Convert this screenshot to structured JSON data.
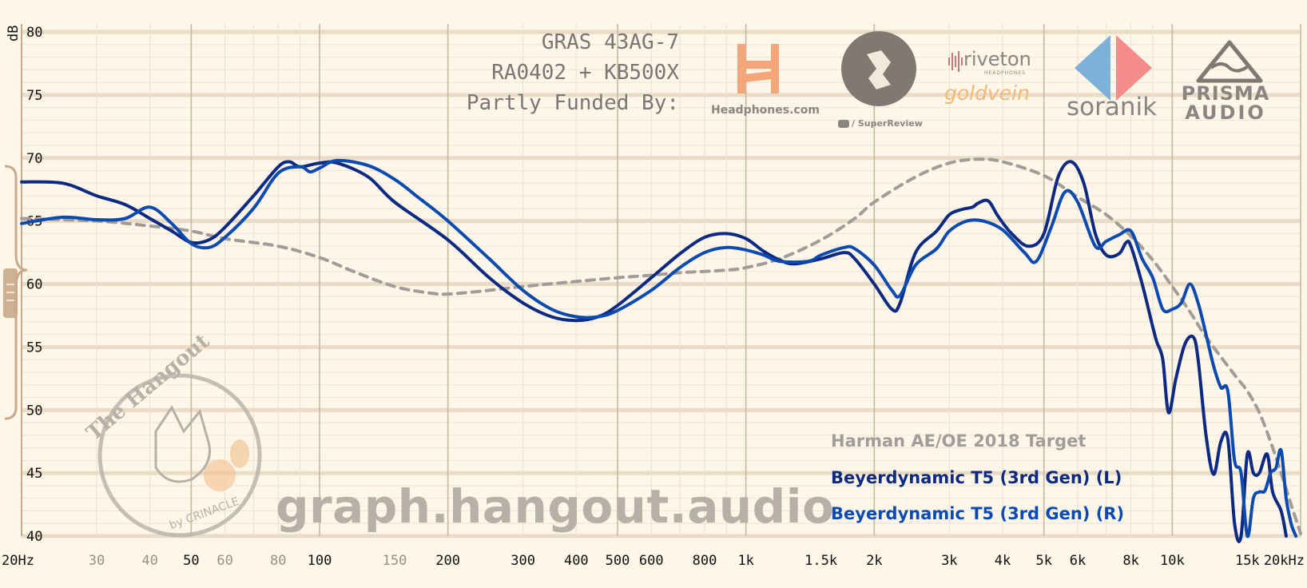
{
  "header": {
    "line1": "GRAS 43AG-7",
    "line2": "RA0402 + KB500X",
    "line3": "Partly Funded By:"
  },
  "sponsors": {
    "headphones": "Headphones.com",
    "superreview": "/ SuperReview",
    "riveton": "riveton",
    "riveton_sub": "HEADPHONES",
    "goldvein": "goldvein",
    "soranik": "soranik",
    "prisma_line1": "PRISMA",
    "prisma_line2": "AUDIO"
  },
  "watermark": "graph.hangout.audio",
  "badge": {
    "title": "The Hangout",
    "by": "by CRINACLE"
  },
  "colors": {
    "background": "#fdf6e9",
    "target": "#a19c98",
    "left": "#0d2a82",
    "right": "#0b4bb0",
    "grid_major": "#c9b79f",
    "grid_minor": "#e8dccb"
  },
  "chart_data": {
    "type": "line",
    "ylabel": "dB",
    "ylim": [
      40,
      80
    ],
    "xlim": [
      20,
      20000
    ],
    "x_scale": "log",
    "y_ticks": [
      80,
      75,
      70,
      65,
      60,
      55,
      50,
      45,
      40
    ],
    "x_ticks": [
      {
        "label": "20Hz",
        "value": 20,
        "major": true
      },
      {
        "label": "30",
        "value": 30,
        "major": false
      },
      {
        "label": "40",
        "value": 40,
        "major": false
      },
      {
        "label": "50",
        "value": 50,
        "major": true
      },
      {
        "label": "60",
        "value": 60,
        "major": false
      },
      {
        "label": "80",
        "value": 80,
        "major": false
      },
      {
        "label": "100",
        "value": 100,
        "major": true
      },
      {
        "label": "150",
        "value": 150,
        "major": false
      },
      {
        "label": "200",
        "value": 200,
        "major": true
      },
      {
        "label": "300",
        "value": 300,
        "major": true
      },
      {
        "label": "400",
        "value": 400,
        "major": true
      },
      {
        "label": "500",
        "value": 500,
        "major": true
      },
      {
        "label": "600",
        "value": 600,
        "major": true
      },
      {
        "label": "800",
        "value": 800,
        "major": true
      },
      {
        "label": "1k",
        "value": 1000,
        "major": true
      },
      {
        "label": "1.5k",
        "value": 1500,
        "major": true
      },
      {
        "label": "2k",
        "value": 2000,
        "major": true
      },
      {
        "label": "3k",
        "value": 3000,
        "major": true
      },
      {
        "label": "4k",
        "value": 4000,
        "major": true
      },
      {
        "label": "5k",
        "value": 5000,
        "major": true
      },
      {
        "label": "6k",
        "value": 6000,
        "major": true
      },
      {
        "label": "8k",
        "value": 8000,
        "major": true
      },
      {
        "label": "10k",
        "value": 10000,
        "major": true
      },
      {
        "label": "15k",
        "value": 15000,
        "major": true
      },
      {
        "label": "20kHz",
        "value": 20000,
        "major": true
      }
    ],
    "series": [
      {
        "name": "Harman AE/OE 2018 Target",
        "style": "dashed",
        "points": [
          [
            20,
            65.2
          ],
          [
            30,
            65.0
          ],
          [
            40,
            64.6
          ],
          [
            50,
            64.2
          ],
          [
            60,
            63.6
          ],
          [
            80,
            63.0
          ],
          [
            100,
            62.1
          ],
          [
            120,
            61.0
          ],
          [
            150,
            59.8
          ],
          [
            180,
            59.3
          ],
          [
            200,
            59.2
          ],
          [
            250,
            59.5
          ],
          [
            300,
            59.8
          ],
          [
            400,
            60.2
          ],
          [
            500,
            60.5
          ],
          [
            600,
            60.7
          ],
          [
            700,
            60.9
          ],
          [
            800,
            61.0
          ],
          [
            900,
            61.1
          ],
          [
            1000,
            61.3
          ],
          [
            1200,
            62.0
          ],
          [
            1500,
            63.5
          ],
          [
            1800,
            65.2
          ],
          [
            2000,
            66.5
          ],
          [
            2500,
            68.5
          ],
          [
            3000,
            69.6
          ],
          [
            3500,
            69.9
          ],
          [
            4000,
            69.7
          ],
          [
            5000,
            68.6
          ],
          [
            6000,
            66.9
          ],
          [
            7000,
            65.5
          ],
          [
            8000,
            63.8
          ],
          [
            9000,
            61.9
          ],
          [
            10000,
            59.8
          ],
          [
            11000,
            57.8
          ],
          [
            12000,
            55.8
          ],
          [
            14000,
            52.8
          ],
          [
            15000,
            51.5
          ],
          [
            16000,
            49.8
          ],
          [
            17000,
            47.5
          ],
          [
            18000,
            45.0
          ],
          [
            19000,
            42.5
          ],
          [
            20000,
            40.2
          ]
        ]
      },
      {
        "name": "Beyerdynamic T5 (3rd Gen) (L)",
        "style": "solid",
        "points": [
          [
            20,
            68.1
          ],
          [
            25,
            68.0
          ],
          [
            30,
            67.0
          ],
          [
            35,
            66.3
          ],
          [
            40,
            65.2
          ],
          [
            45,
            64.2
          ],
          [
            50,
            63.3
          ],
          [
            55,
            63.5
          ],
          [
            60,
            64.5
          ],
          [
            70,
            67.0
          ],
          [
            80,
            69.3
          ],
          [
            85,
            69.7
          ],
          [
            90,
            69.3
          ],
          [
            100,
            69.6
          ],
          [
            110,
            69.6
          ],
          [
            130,
            68.5
          ],
          [
            150,
            66.5
          ],
          [
            200,
            63.5
          ],
          [
            250,
            60.5
          ],
          [
            300,
            58.5
          ],
          [
            350,
            57.4
          ],
          [
            400,
            57.1
          ],
          [
            450,
            57.4
          ],
          [
            500,
            58.3
          ],
          [
            600,
            60.5
          ],
          [
            700,
            62.4
          ],
          [
            800,
            63.7
          ],
          [
            900,
            64.0
          ],
          [
            1000,
            63.6
          ],
          [
            1100,
            62.6
          ],
          [
            1200,
            61.9
          ],
          [
            1300,
            61.6
          ],
          [
            1500,
            62.0
          ],
          [
            1700,
            62.5
          ],
          [
            1800,
            62.0
          ],
          [
            2000,
            60.0
          ],
          [
            2200,
            58.0
          ],
          [
            2300,
            58.5
          ],
          [
            2500,
            62.5
          ],
          [
            2800,
            64.2
          ],
          [
            3000,
            65.5
          ],
          [
            3200,
            65.9
          ],
          [
            3400,
            66.1
          ],
          [
            3500,
            66.4
          ],
          [
            3700,
            66.6
          ],
          [
            3900,
            65.4
          ],
          [
            4200,
            64.0
          ],
          [
            4600,
            63.0
          ],
          [
            5000,
            64.0
          ],
          [
            5400,
            68.5
          ],
          [
            5800,
            69.7
          ],
          [
            6200,
            68.0
          ],
          [
            6600,
            64.0
          ],
          [
            7000,
            62.3
          ],
          [
            7500,
            62.4
          ],
          [
            7800,
            63.3
          ],
          [
            8000,
            63.0
          ],
          [
            8500,
            60.0
          ],
          [
            9000,
            56.6
          ],
          [
            9200,
            55.4
          ],
          [
            9500,
            54.0
          ],
          [
            9800,
            49.8
          ],
          [
            10200,
            52.5
          ],
          [
            10700,
            55.2
          ],
          [
            11200,
            55.8
          ],
          [
            11500,
            54.0
          ],
          [
            12000,
            48.0
          ],
          [
            12500,
            44.9
          ],
          [
            13000,
            47.5
          ],
          [
            13500,
            47.7
          ],
          [
            14000,
            41.0
          ],
          [
            14500,
            40.0
          ],
          [
            15000,
            46.5
          ],
          [
            15500,
            45.0
          ],
          [
            16000,
            45.0
          ],
          [
            16700,
            46.5
          ],
          [
            17200,
            43.5
          ],
          [
            18000,
            42.0
          ],
          [
            18500,
            40.0
          ]
        ]
      },
      {
        "name": "Beyerdynamic T5 (3rd Gen) (R)",
        "style": "solid",
        "points": [
          [
            20,
            64.8
          ],
          [
            25,
            65.3
          ],
          [
            30,
            65.1
          ],
          [
            35,
            65.2
          ],
          [
            40,
            66.1
          ],
          [
            45,
            64.8
          ],
          [
            50,
            63.2
          ],
          [
            55,
            62.9
          ],
          [
            60,
            63.7
          ],
          [
            70,
            66.0
          ],
          [
            80,
            68.8
          ],
          [
            90,
            69.3
          ],
          [
            95,
            68.9
          ],
          [
            100,
            69.2
          ],
          [
            110,
            69.8
          ],
          [
            130,
            69.4
          ],
          [
            150,
            68.3
          ],
          [
            170,
            66.9
          ],
          [
            200,
            65.0
          ],
          [
            250,
            62.0
          ],
          [
            300,
            59.5
          ],
          [
            350,
            58.0
          ],
          [
            400,
            57.4
          ],
          [
            450,
            57.4
          ],
          [
            500,
            57.9
          ],
          [
            600,
            59.5
          ],
          [
            700,
            61.3
          ],
          [
            800,
            62.5
          ],
          [
            900,
            62.9
          ],
          [
            1000,
            62.7
          ],
          [
            1100,
            62.3
          ],
          [
            1200,
            61.8
          ],
          [
            1400,
            61.8
          ],
          [
            1500,
            62.3
          ],
          [
            1700,
            62.9
          ],
          [
            1800,
            62.8
          ],
          [
            2000,
            61.5
          ],
          [
            2200,
            59.5
          ],
          [
            2300,
            59.1
          ],
          [
            2500,
            61.5
          ],
          [
            2800,
            62.8
          ],
          [
            3000,
            64.2
          ],
          [
            3300,
            65.0
          ],
          [
            3600,
            65.0
          ],
          [
            4000,
            64.3
          ],
          [
            4500,
            62.5
          ],
          [
            4800,
            61.8
          ],
          [
            5200,
            64.5
          ],
          [
            5600,
            67.3
          ],
          [
            6000,
            66.5
          ],
          [
            6600,
            63.0
          ],
          [
            7000,
            63.4
          ],
          [
            7500,
            63.9
          ],
          [
            8000,
            64.2
          ],
          [
            8500,
            62.0
          ],
          [
            9000,
            60.5
          ],
          [
            9500,
            58.0
          ],
          [
            10000,
            58.0
          ],
          [
            10500,
            58.5
          ],
          [
            11000,
            60.0
          ],
          [
            11500,
            58.5
          ],
          [
            12000,
            56.0
          ],
          [
            12500,
            53.5
          ],
          [
            13000,
            51.8
          ],
          [
            13500,
            51.5
          ],
          [
            14000,
            46.0
          ],
          [
            14500,
            45.0
          ],
          [
            15000,
            40.0
          ],
          [
            15500,
            43.0
          ],
          [
            16000,
            43.5
          ],
          [
            16500,
            43.6
          ],
          [
            17000,
            45.0
          ],
          [
            17500,
            45.4
          ],
          [
            18000,
            46.8
          ],
          [
            18500,
            43.0
          ],
          [
            19000,
            41.0
          ],
          [
            19500,
            40.0
          ]
        ]
      }
    ]
  }
}
